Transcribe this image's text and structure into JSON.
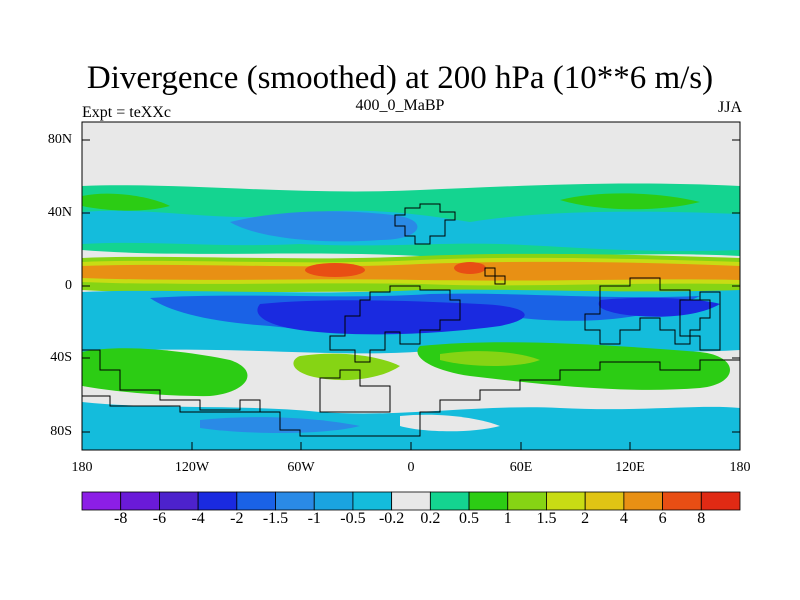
{
  "title": "Divergence (smoothed) at 200 hPa (10**6 m/s)",
  "subtitle_left": "Expt = teXXc",
  "subtitle_center": "400_0_MaBP",
  "subtitle_right": "JJA",
  "y_axis": {
    "labels": [
      "80N",
      "40N",
      "0",
      "40S",
      "80S"
    ]
  },
  "x_axis": {
    "labels": [
      "180",
      "120W",
      "60W",
      "0",
      "60E",
      "120E",
      "180"
    ]
  },
  "colorbar": {
    "labels": [
      "-8",
      "-6",
      "-4",
      "-2",
      "-1.5",
      "-1",
      "-0.5",
      "-0.2",
      "0.2",
      "0.5",
      "1",
      "1.5",
      "2",
      "4",
      "6",
      "8"
    ],
    "colors": [
      "#8c1ee6",
      "#6a1ad8",
      "#4d22cc",
      "#1a2ae0",
      "#1a62e6",
      "#2a8ae6",
      "#1aa4e0",
      "#14bcdc",
      "#e8e8e8",
      "#14d490",
      "#2ccc14",
      "#86d414",
      "#c8dc14",
      "#e0c414",
      "#e89014",
      "#e84e14",
      "#e02a14"
    ]
  },
  "map_colors": {
    "neutral": "#e8e8e8",
    "neg_light": "#14bcdc",
    "neg_mid": "#2a8ae6",
    "neg_strong": "#1a62e6",
    "neg_deep": "#1a2ae0",
    "pos_light": "#14d490",
    "pos_mid": "#2ccc14",
    "pos_yg": "#86d414",
    "pos_yellow": "#c8dc14",
    "pos_orange": "#e0c414",
    "pos_dorange": "#e89014",
    "pos_red": "#e84e14"
  }
}
